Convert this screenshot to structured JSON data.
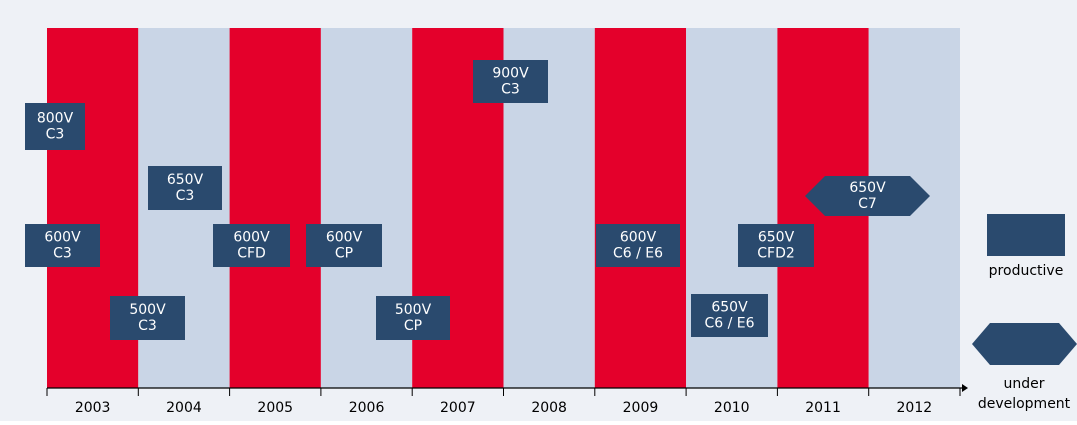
{
  "years": [
    "2003",
    "2004",
    "2005",
    "2006",
    "2007",
    "2008",
    "2009",
    "2010",
    "2011",
    "2012"
  ],
  "items": [
    {
      "lines": [
        "800V",
        "C3"
      ]
    },
    {
      "lines": [
        "650V",
        "C3"
      ]
    },
    {
      "lines": [
        "600V",
        "C3"
      ]
    },
    {
      "lines": [
        "500V",
        "C3"
      ]
    },
    {
      "lines": [
        "600V",
        "CFD"
      ]
    },
    {
      "lines": [
        "600V",
        "CP"
      ]
    },
    {
      "lines": [
        "900V",
        "C3"
      ]
    },
    {
      "lines": [
        "500V",
        "CP"
      ]
    },
    {
      "lines": [
        "600V",
        "C6 / E6"
      ]
    },
    {
      "lines": [
        "650V",
        "C6 / E6"
      ]
    },
    {
      "lines": [
        "650V",
        "CFD2"
      ]
    },
    {
      "lines": [
        "650V",
        "C7"
      ]
    }
  ],
  "legend": {
    "productive": "productive",
    "development": [
      "under",
      "development"
    ]
  }
}
